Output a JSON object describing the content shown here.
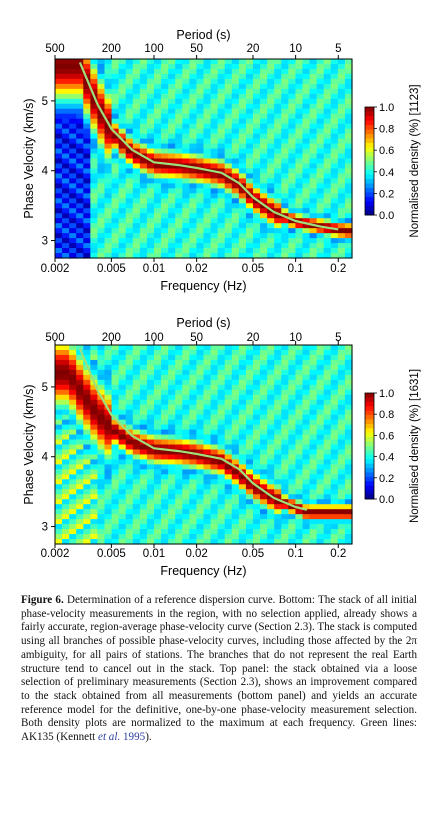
{
  "panels": [
    {
      "id": "top",
      "top_axis_label": "Period (s)",
      "top_ticks": [
        "500",
        "200",
        "100",
        "50",
        "20",
        "10",
        "5"
      ],
      "y_label": "Phase Velocity (km/s)",
      "y_ticks": [
        "3",
        "4",
        "5"
      ],
      "x_label": "Frequency (Hz)",
      "x_ticks": [
        "0.002",
        "0.005",
        "0.01",
        "0.02",
        "0.05",
        "0.1",
        "0.2"
      ],
      "colorbar_label": "Normalised density (%) [1123]",
      "colorbar_ticks": [
        "0.0",
        "0.2",
        "0.4",
        "0.6",
        "0.8",
        "1.0"
      ]
    },
    {
      "id": "bottom",
      "top_axis_label": "Period (s)",
      "top_ticks": [
        "500",
        "200",
        "100",
        "50",
        "20",
        "10",
        "5"
      ],
      "y_label": "Phase Velocity (km/s)",
      "y_ticks": [
        "3",
        "4",
        "5"
      ],
      "x_label": "Frequency (Hz)",
      "x_ticks": [
        "0.002",
        "0.005",
        "0.01",
        "0.02",
        "0.05",
        "0.1",
        "0.2"
      ],
      "colorbar_label": "Normalised density (%) [1631]",
      "colorbar_ticks": [
        "0.0",
        "0.2",
        "0.4",
        "0.6",
        "0.8",
        "1.0"
      ]
    }
  ],
  "chart_data": [
    {
      "type": "heatmap",
      "panel": "top",
      "xlabel": "Frequency (Hz)",
      "ylabel": "Phase Velocity (km/s)",
      "secondary_xlabel": "Period (s)",
      "xscale": "log",
      "xlim": [
        0.002,
        0.25
      ],
      "ylim": [
        2.75,
        5.6
      ],
      "colorbar": {
        "label": "Normalised density (%) [1123]",
        "range": [
          0.0,
          1.0
        ]
      },
      "ridge": {
        "x": [
          0.003,
          0.004,
          0.005,
          0.007,
          0.01,
          0.015,
          0.02,
          0.03,
          0.04,
          0.05,
          0.07,
          0.1,
          0.15,
          0.2,
          0.25
        ],
        "y": [
          5.5,
          4.9,
          4.55,
          4.25,
          4.1,
          4.07,
          4.03,
          3.95,
          3.8,
          3.6,
          3.4,
          3.27,
          3.2,
          3.15,
          3.13
        ]
      },
      "series": [
        {
          "name": "AK135",
          "x": [
            0.003,
            0.004,
            0.005,
            0.007,
            0.01,
            0.015,
            0.02,
            0.03,
            0.04,
            0.05,
            0.07,
            0.1,
            0.15,
            0.2
          ],
          "y": [
            5.55,
            4.95,
            4.6,
            4.3,
            4.12,
            4.08,
            4.04,
            3.97,
            3.82,
            3.62,
            3.41,
            3.28,
            3.2,
            3.16
          ]
        }
      ]
    },
    {
      "type": "heatmap",
      "panel": "bottom",
      "xlabel": "Frequency (Hz)",
      "ylabel": "Phase Velocity (km/s)",
      "secondary_xlabel": "Period (s)",
      "xscale": "log",
      "xlim": [
        0.002,
        0.25
      ],
      "ylim": [
        2.75,
        5.6
      ],
      "colorbar": {
        "label": "Normalised density (%) [1631]",
        "range": [
          0.0,
          1.0
        ]
      },
      "ridge": {
        "x": [
          0.0025,
          0.003,
          0.004,
          0.005,
          0.007,
          0.01,
          0.015,
          0.02,
          0.03,
          0.04,
          0.05,
          0.07,
          0.1,
          0.12
        ],
        "y": [
          5.2,
          4.95,
          4.6,
          4.4,
          4.2,
          4.1,
          4.07,
          4.03,
          3.93,
          3.75,
          3.58,
          3.4,
          3.27,
          3.2
        ]
      },
      "series": [
        {
          "name": "AK135",
          "x": [
            0.003,
            0.004,
            0.005,
            0.007,
            0.01,
            0.015,
            0.02,
            0.03,
            0.04,
            0.05,
            0.07,
            0.1,
            0.12
          ],
          "y": [
            5.55,
            4.95,
            4.6,
            4.3,
            4.12,
            4.08,
            4.04,
            3.97,
            3.82,
            3.62,
            3.41,
            3.28,
            3.24
          ]
        }
      ]
    }
  ],
  "caption": {
    "label": "Figure 6.",
    "text": "Determination of a reference dispersion curve. Bottom: The stack of all initial phase-velocity measurements in the region, with no selection applied, already shows a fairly accurate, region-average phase-velocity curve (Section 2.3). The stack is computed using all branches of possible phase-velocity curves, including those affected by the 2π ambiguity, for all pairs of stations. The branches that do not represent the real Earth structure tend to cancel out in the stack. Top panel: the stack obtained via a loose selection of preliminary measurements (Section 2.3), shows an improvement compared to the stack obtained from all measurements (bottom panel) and yields an accurate reference model for the definitive, one-by-one phase-velocity measurement selection. Both density plots are normalized to the maximum at each frequency. Green lines: AK135 (Kennett",
    "cite_etal": "et al.",
    "cite_year": "1995",
    "tail": ")."
  }
}
